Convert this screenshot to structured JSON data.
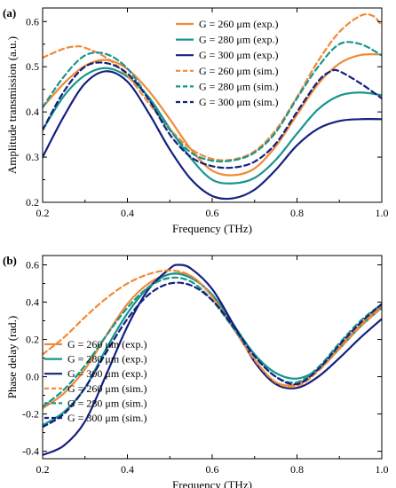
{
  "colors": {
    "orange": "#f08a36",
    "teal": "#17958f",
    "navy": "#14207e"
  },
  "chart_data": [
    {
      "type": "line",
      "panel_label": "(a)",
      "xlabel": "Frequency (THz)",
      "ylabel": "Amplitude transmission (a.u.)",
      "xlim": [
        0.2,
        1.0
      ],
      "ylim": [
        0.2,
        0.63
      ],
      "xticks": [
        0.2,
        0.4,
        0.6,
        0.8,
        1.0
      ],
      "xtick_labels": [
        "0.2",
        "0.4",
        "0.6",
        "0.8",
        "1.0"
      ],
      "yticks": [
        0.2,
        0.3,
        0.4,
        0.5,
        0.6
      ],
      "ytick_labels": [
        "0.2",
        "0.3",
        "0.4",
        "0.5",
        "0.6"
      ],
      "legend_position": "top-right",
      "series": [
        {
          "name": "G = 260 μm (exp.)",
          "color": "orange",
          "dash": "solid",
          "x": [
            0.2,
            0.25,
            0.3,
            0.35,
            0.4,
            0.45,
            0.5,
            0.55,
            0.6,
            0.65,
            0.7,
            0.75,
            0.8,
            0.85,
            0.9,
            0.95,
            1.0
          ],
          "y": [
            0.41,
            0.463,
            0.502,
            0.515,
            0.495,
            0.447,
            0.384,
            0.317,
            0.27,
            0.26,
            0.275,
            0.324,
            0.394,
            0.462,
            0.507,
            0.526,
            0.527
          ]
        },
        {
          "name": "G = 280 μm (exp.)",
          "color": "teal",
          "dash": "solid",
          "x": [
            0.2,
            0.25,
            0.3,
            0.35,
            0.4,
            0.45,
            0.5,
            0.55,
            0.6,
            0.65,
            0.7,
            0.75,
            0.8,
            0.85,
            0.9,
            0.95,
            1.0
          ],
          "y": [
            0.36,
            0.435,
            0.481,
            0.497,
            0.478,
            0.433,
            0.363,
            0.297,
            0.25,
            0.242,
            0.254,
            0.294,
            0.352,
            0.406,
            0.436,
            0.443,
            0.437
          ]
        },
        {
          "name": "G = 300 μm (exp.)",
          "color": "navy",
          "dash": "solid",
          "x": [
            0.2,
            0.25,
            0.3,
            0.35,
            0.4,
            0.45,
            0.5,
            0.55,
            0.6,
            0.65,
            0.7,
            0.75,
            0.8,
            0.85,
            0.9,
            0.95,
            1.0
          ],
          "y": [
            0.3,
            0.39,
            0.463,
            0.49,
            0.467,
            0.398,
            0.317,
            0.251,
            0.214,
            0.209,
            0.228,
            0.272,
            0.326,
            0.363,
            0.38,
            0.384,
            0.384
          ]
        },
        {
          "name": "G = 260 μm (sim.)",
          "color": "orange",
          "dash": "dash",
          "x": [
            0.2,
            0.25,
            0.28,
            0.3,
            0.35,
            0.4,
            0.45,
            0.5,
            0.55,
            0.6,
            0.65,
            0.7,
            0.75,
            0.8,
            0.85,
            0.9,
            0.95,
            0.98,
            1.0
          ],
          "y": [
            0.52,
            0.54,
            0.545,
            0.542,
            0.52,
            0.48,
            0.42,
            0.362,
            0.318,
            0.296,
            0.295,
            0.313,
            0.36,
            0.433,
            0.513,
            0.577,
            0.613,
            0.612,
            0.59
          ]
        },
        {
          "name": "G = 280 μm (sim.)",
          "color": "teal",
          "dash": "dash",
          "x": [
            0.2,
            0.25,
            0.3,
            0.35,
            0.4,
            0.45,
            0.5,
            0.55,
            0.6,
            0.65,
            0.7,
            0.75,
            0.8,
            0.85,
            0.9,
            0.95,
            1.0
          ],
          "y": [
            0.41,
            0.478,
            0.525,
            0.528,
            0.496,
            0.43,
            0.36,
            0.31,
            0.292,
            0.293,
            0.31,
            0.355,
            0.43,
            0.5,
            0.55,
            0.55,
            0.525
          ]
        },
        {
          "name": "G = 300 μm (sim.)",
          "color": "navy",
          "dash": "dash",
          "x": [
            0.2,
            0.25,
            0.3,
            0.35,
            0.4,
            0.45,
            0.5,
            0.55,
            0.6,
            0.65,
            0.7,
            0.75,
            0.8,
            0.85,
            0.88,
            0.9,
            0.95,
            1.0
          ],
          "y": [
            0.36,
            0.445,
            0.5,
            0.508,
            0.485,
            0.428,
            0.35,
            0.3,
            0.28,
            0.277,
            0.29,
            0.33,
            0.4,
            0.468,
            0.49,
            0.49,
            0.463,
            0.43
          ]
        }
      ]
    },
    {
      "type": "line",
      "panel_label": "(b)",
      "xlabel": "Frequency (THz)",
      "ylabel": "Phase delay (rad.)",
      "xlim": [
        0.2,
        1.0
      ],
      "ylim": [
        -0.44,
        0.65
      ],
      "xticks": [
        0.2,
        0.4,
        0.6,
        0.8,
        1.0
      ],
      "xtick_labels": [
        "0.2",
        "0.4",
        "0.6",
        "0.8",
        "1.0"
      ],
      "yticks": [
        -0.4,
        -0.2,
        0.0,
        0.2,
        0.4,
        0.6
      ],
      "ytick_labels": [
        "-0.4",
        "-0.2",
        "0.0",
        "0.2",
        "0.4",
        "0.6"
      ],
      "legend_position": "bottom-left",
      "series": [
        {
          "name": "G = 260 μm (exp.)",
          "color": "orange",
          "dash": "solid",
          "x": [
            0.2,
            0.25,
            0.3,
            0.35,
            0.4,
            0.45,
            0.5,
            0.55,
            0.6,
            0.65,
            0.7,
            0.75,
            0.8,
            0.85,
            0.9,
            0.95,
            1.0
          ],
          "y": [
            -0.17,
            -0.09,
            0.04,
            0.22,
            0.39,
            0.5,
            0.55,
            0.54,
            0.43,
            0.26,
            0.09,
            -0.03,
            -0.04,
            0.04,
            0.16,
            0.28,
            0.38
          ]
        },
        {
          "name": "G = 280 μm (exp.)",
          "color": "teal",
          "dash": "solid",
          "x": [
            0.2,
            0.25,
            0.3,
            0.35,
            0.4,
            0.45,
            0.5,
            0.55,
            0.6,
            0.65,
            0.7,
            0.75,
            0.8,
            0.85,
            0.9,
            0.95,
            1.0
          ],
          "y": [
            -0.26,
            -0.19,
            -0.06,
            0.15,
            0.34,
            0.48,
            0.55,
            0.53,
            0.44,
            0.28,
            0.12,
            0.02,
            -0.01,
            0.04,
            0.15,
            0.27,
            0.37
          ]
        },
        {
          "name": "G = 300 μm (exp.)",
          "color": "navy",
          "dash": "solid",
          "x": [
            0.2,
            0.25,
            0.3,
            0.35,
            0.4,
            0.45,
            0.5,
            0.52,
            0.55,
            0.6,
            0.65,
            0.7,
            0.75,
            0.8,
            0.85,
            0.9,
            0.95,
            1.0
          ],
          "y": [
            -0.42,
            -0.37,
            -0.24,
            0.01,
            0.27,
            0.47,
            0.58,
            0.6,
            0.58,
            0.47,
            0.28,
            0.08,
            -0.04,
            -0.06,
            0.0,
            0.1,
            0.21,
            0.31
          ]
        },
        {
          "name": "G = 260 μm (sim.)",
          "color": "orange",
          "dash": "dash",
          "x": [
            0.2,
            0.25,
            0.3,
            0.35,
            0.4,
            0.45,
            0.5,
            0.55,
            0.6,
            0.65,
            0.7,
            0.75,
            0.8,
            0.85,
            0.9,
            0.95,
            1.0
          ],
          "y": [
            0.12,
            0.21,
            0.32,
            0.42,
            0.5,
            0.55,
            0.57,
            0.54,
            0.43,
            0.26,
            0.09,
            -0.03,
            -0.05,
            0.03,
            0.15,
            0.27,
            0.37
          ]
        },
        {
          "name": "G = 280 μm (sim.)",
          "color": "teal",
          "dash": "dash",
          "x": [
            0.2,
            0.25,
            0.3,
            0.35,
            0.4,
            0.45,
            0.5,
            0.55,
            0.6,
            0.65,
            0.7,
            0.75,
            0.8,
            0.85,
            0.9,
            0.95,
            1.0
          ],
          "y": [
            -0.16,
            -0.07,
            0.06,
            0.22,
            0.37,
            0.48,
            0.53,
            0.51,
            0.41,
            0.26,
            0.11,
            0.0,
            -0.03,
            0.05,
            0.18,
            0.3,
            0.39
          ]
        },
        {
          "name": "G = 300 μm (sim.)",
          "color": "navy",
          "dash": "dash",
          "x": [
            0.2,
            0.25,
            0.3,
            0.35,
            0.4,
            0.45,
            0.5,
            0.55,
            0.6,
            0.65,
            0.7,
            0.75,
            0.8,
            0.85,
            0.9,
            0.95,
            1.0
          ],
          "y": [
            -0.27,
            -0.2,
            -0.06,
            0.13,
            0.31,
            0.44,
            0.5,
            0.49,
            0.41,
            0.27,
            0.11,
            0.0,
            -0.04,
            0.04,
            0.17,
            0.29,
            0.39
          ]
        }
      ]
    }
  ]
}
